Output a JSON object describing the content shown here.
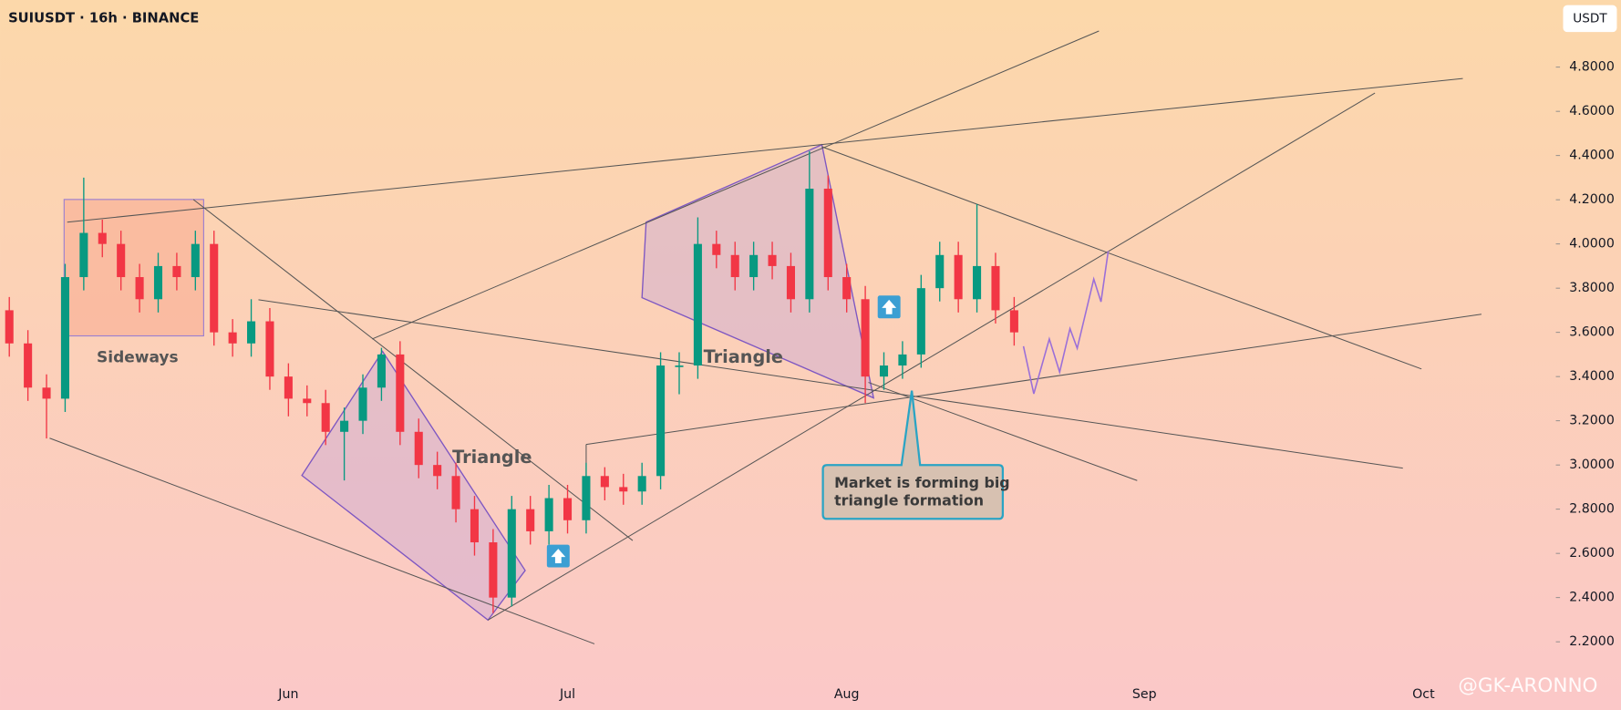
{
  "header": {
    "symbol": "SUIUSDT · 16h · BINANCE",
    "currency": "USDT"
  },
  "chart_data": {
    "type": "candlestick",
    "categories": [
      null,
      null,
      null,
      null,
      null,
      null,
      null,
      null,
      null,
      null,
      null,
      null,
      null,
      null,
      null,
      "Jun",
      null,
      null,
      null,
      null,
      null,
      null,
      null,
      null,
      null,
      null,
      null,
      null,
      null,
      null,
      "Jul",
      null,
      null,
      null,
      null,
      null,
      null,
      null,
      null,
      null,
      null,
      null,
      null,
      null,
      null,
      "Aug",
      null,
      null,
      null,
      null,
      null,
      null,
      null,
      null,
      null,
      null,
      null,
      null,
      null,
      null,
      null,
      "Sep",
      null,
      null,
      null,
      null,
      null,
      null,
      null,
      null,
      null,
      null,
      null,
      null,
      null,
      null,
      "Oct",
      null,
      null,
      null,
      null
    ],
    "open": [
      3.7,
      3.55,
      3.35,
      3.3,
      3.85,
      4.05,
      4.0,
      3.85,
      3.75,
      3.9,
      3.85,
      4.0,
      3.6,
      3.55,
      3.65,
      3.4,
      3.3,
      3.28,
      3.15,
      3.2,
      3.35,
      3.5,
      3.15,
      3.0,
      2.95,
      2.8,
      2.65,
      2.4,
      2.8,
      2.7,
      2.85,
      2.75,
      2.95,
      2.9,
      2.88,
      2.95,
      3.45,
      3.45,
      4.0,
      3.95,
      3.85,
      3.95,
      3.9,
      3.75,
      4.25,
      3.85,
      3.75,
      3.4,
      3.45,
      3.5,
      3.8,
      3.95,
      3.75,
      3.9,
      3.7,
      null,
      null,
      null,
      null,
      null,
      null,
      null,
      null,
      null,
      null,
      null,
      null,
      null,
      null,
      null,
      null,
      null,
      null,
      null,
      null,
      null,
      null,
      null,
      null,
      null,
      null
    ],
    "high": [
      3.76,
      3.61,
      3.41,
      3.91,
      4.3,
      4.11,
      4.06,
      3.91,
      3.96,
      3.96,
      4.06,
      4.06,
      3.66,
      3.75,
      3.71,
      3.46,
      3.36,
      3.34,
      3.26,
      3.41,
      3.53,
      3.56,
      3.21,
      3.06,
      3.01,
      2.86,
      2.71,
      2.86,
      2.86,
      2.91,
      2.91,
      3.01,
      2.99,
      2.96,
      3.01,
      3.51,
      3.51,
      4.12,
      4.06,
      4.01,
      4.01,
      4.01,
      3.96,
      4.42,
      4.31,
      3.91,
      3.81,
      3.51,
      3.56,
      3.86,
      4.01,
      4.01,
      4.18,
      3.96,
      3.76,
      null,
      null,
      null,
      null,
      null,
      null,
      null,
      null,
      null,
      null,
      null,
      null,
      null,
      null,
      null,
      null,
      null,
      null,
      null,
      null,
      null,
      null,
      null,
      null,
      null,
      null
    ],
    "low": [
      3.49,
      3.29,
      3.12,
      3.24,
      3.79,
      3.94,
      3.79,
      3.69,
      3.69,
      3.79,
      3.79,
      3.54,
      3.49,
      3.49,
      3.34,
      3.22,
      3.22,
      3.09,
      2.93,
      3.14,
      3.29,
      3.09,
      2.94,
      2.89,
      2.74,
      2.59,
      2.33,
      2.36,
      2.64,
      2.64,
      2.69,
      2.69,
      2.84,
      2.82,
      2.82,
      2.89,
      3.32,
      3.39,
      3.89,
      3.79,
      3.79,
      3.84,
      3.69,
      3.69,
      3.79,
      3.69,
      3.28,
      3.34,
      3.39,
      3.44,
      3.74,
      3.69,
      3.69,
      3.64,
      3.54,
      null,
      null,
      null,
      null,
      null,
      null,
      null,
      null,
      null,
      null,
      null,
      null,
      null,
      null,
      null,
      null,
      null,
      null,
      null,
      null,
      null,
      null,
      null,
      null,
      null,
      null
    ],
    "close": [
      3.55,
      3.35,
      3.3,
      3.85,
      4.05,
      4.0,
      3.85,
      3.75,
      3.9,
      3.85,
      4.0,
      3.6,
      3.55,
      3.65,
      3.4,
      3.3,
      3.28,
      3.15,
      3.2,
      3.35,
      3.5,
      3.15,
      3.0,
      2.95,
      2.8,
      2.65,
      2.4,
      2.8,
      2.7,
      2.85,
      2.75,
      2.95,
      2.9,
      2.88,
      2.95,
      3.45,
      3.45,
      4.0,
      3.95,
      3.85,
      3.95,
      3.9,
      3.75,
      4.25,
      3.85,
      3.75,
      3.4,
      3.45,
      3.5,
      3.8,
      3.95,
      3.75,
      3.9,
      3.7,
      3.6,
      null,
      null,
      null,
      null,
      null,
      null,
      null,
      null,
      null,
      null,
      null,
      null,
      null,
      null,
      null,
      null,
      null,
      null,
      null,
      null,
      null,
      null,
      null,
      null,
      null,
      null
    ],
    "up_color": "#089981",
    "down_color": "#f23645",
    "ylim": [
      1.89,
      5.1
    ],
    "yticks": [
      {
        "value": 2.2,
        "label": "2.2000"
      },
      {
        "value": 2.4,
        "label": "2.4000"
      },
      {
        "value": 2.6,
        "label": "2.6000"
      },
      {
        "value": 2.8,
        "label": "2.8000"
      },
      {
        "value": 3.0,
        "label": "3.0000"
      },
      {
        "value": 3.2,
        "label": "3.2000"
      },
      {
        "value": 3.4,
        "label": "3.4000"
      },
      {
        "value": 3.6,
        "label": "3.6000"
      },
      {
        "value": 3.8,
        "label": "3.8000"
      },
      {
        "value": 4.0,
        "label": "4.0000"
      },
      {
        "value": 4.2,
        "label": "4.2000"
      },
      {
        "value": 4.4,
        "label": "4.4000"
      },
      {
        "value": 4.6,
        "label": "4.6000"
      },
      {
        "value": 4.8,
        "label": "4.8000"
      }
    ],
    "annotations": [
      "Sideways",
      "Triangle",
      "Triangle",
      "Market is forming big",
      "triangle formation"
    ]
  },
  "watermark": "@GK-ARONNO"
}
